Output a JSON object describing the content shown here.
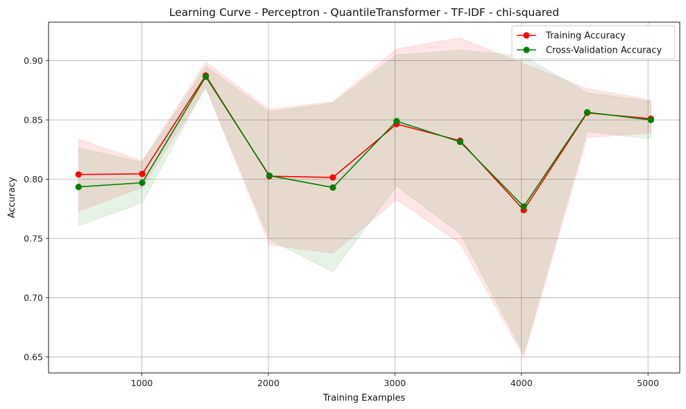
{
  "chart_data": {
    "type": "line",
    "title": "Learning Curve - Perceptron - QuantileTransformer - TF-IDF - chi-squared",
    "xlabel": "Training Examples",
    "ylabel": "Accuracy",
    "xlim": [
      263,
      5251
    ],
    "ylim": [
      0.6365,
      0.9325
    ],
    "xticks": [
      1000,
      2000,
      3000,
      4000,
      5000
    ],
    "xtick_labels": [
      "1000",
      "2000",
      "3000",
      "4000",
      "5000"
    ],
    "yticks": [
      0.65,
      0.7,
      0.75,
      0.8,
      0.85,
      0.9
    ],
    "ytick_labels": [
      "0.65",
      "0.70",
      "0.75",
      "0.80",
      "0.85",
      "0.90"
    ],
    "grid": true,
    "legend_position": "top-right",
    "x": [
      500,
      1003,
      1505,
      2008,
      2510,
      3013,
      3515,
      4018,
      4520,
      5023
    ],
    "series": [
      {
        "name": "Training Accuracy",
        "color": "#ff0000",
        "band_color": "#ffcccc",
        "values": [
          0.804,
          0.8045,
          0.8875,
          0.8025,
          0.8015,
          0.8465,
          0.8325,
          0.774,
          0.856,
          0.851
        ],
        "upper": [
          0.834,
          0.8155,
          0.899,
          0.859,
          0.8655,
          0.91,
          0.9195,
          0.8975,
          0.8765,
          0.867
        ],
        "lower": [
          0.773,
          0.793,
          0.877,
          0.7445,
          0.7375,
          0.7825,
          0.7455,
          0.65,
          0.835,
          0.839
        ]
      },
      {
        "name": "Cross-Validation Accuracy",
        "color": "#008000",
        "band_color": "#cce6cc",
        "values": [
          0.7935,
          0.797,
          0.8865,
          0.803,
          0.793,
          0.849,
          0.8315,
          0.777,
          0.8565,
          0.85
        ],
        "upper": [
          0.8265,
          0.8145,
          0.895,
          0.857,
          0.8645,
          0.905,
          0.909,
          0.904,
          0.873,
          0.866
        ],
        "lower": [
          0.7605,
          0.78,
          0.878,
          0.749,
          0.7215,
          0.794,
          0.754,
          0.653,
          0.84,
          0.834
        ]
      }
    ]
  }
}
